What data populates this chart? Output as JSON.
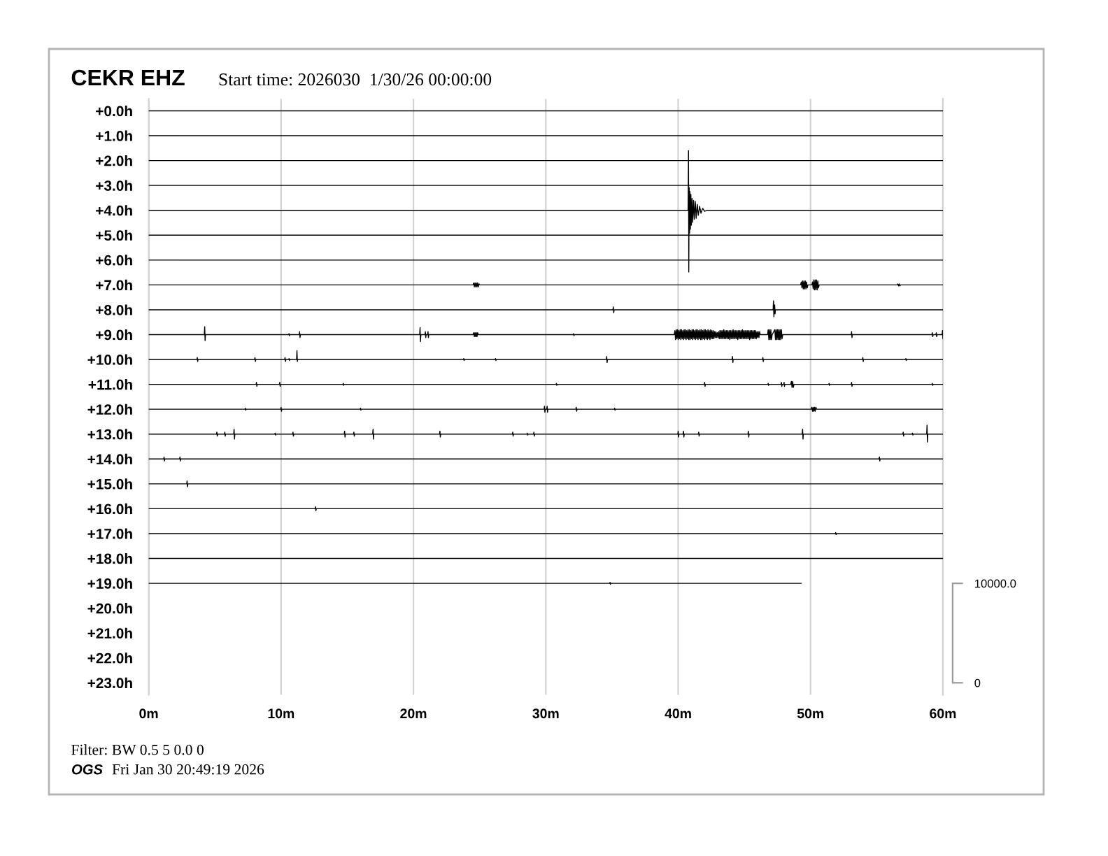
{
  "chart_data": {
    "type": "line",
    "title": "CEKR EHZ",
    "subtitle": "Start time: 2026030  1/30/26 00:00:00",
    "annotations": [
      "Filter: BW 0.5 5 0.0 0",
      "OGS",
      "Fri Jan 30 20:49:19 2026"
    ],
    "xlim": [
      0,
      60
    ],
    "xticks": [
      {
        "value": 0,
        "label": "0m"
      },
      {
        "value": 10,
        "label": "10m"
      },
      {
        "value": 20,
        "label": "20m"
      },
      {
        "value": 30,
        "label": "30m"
      },
      {
        "value": 40,
        "label": "40m"
      },
      {
        "value": 50,
        "label": "50m"
      },
      {
        "value": 60,
        "label": "60m"
      }
    ],
    "ylim": [
      23.48,
      -0.48
    ],
    "yticks": [
      {
        "value": 0,
        "label": "+0.0h"
      },
      {
        "value": 1,
        "label": "+1.0h"
      },
      {
        "value": 2,
        "label": "+2.0h"
      },
      {
        "value": 3,
        "label": "+3.0h"
      },
      {
        "value": 4,
        "label": "+4.0h"
      },
      {
        "value": 5,
        "label": "+5.0h"
      },
      {
        "value": 6,
        "label": "+6.0h"
      },
      {
        "value": 7,
        "label": "+7.0h"
      },
      {
        "value": 8,
        "label": "+8.0h"
      },
      {
        "value": 9,
        "label": "+9.0h"
      },
      {
        "value": 10,
        "label": "+10.0h"
      },
      {
        "value": 11,
        "label": "+11.0h"
      },
      {
        "value": 12,
        "label": "+12.0h"
      },
      {
        "value": 13,
        "label": "+13.0h"
      },
      {
        "value": 14,
        "label": "+14.0h"
      },
      {
        "value": 15,
        "label": "+15.0h"
      },
      {
        "value": 16,
        "label": "+16.0h"
      },
      {
        "value": 17,
        "label": "+17.0h"
      },
      {
        "value": 18,
        "label": "+18.0h"
      },
      {
        "value": 19,
        "label": "+19.0h"
      },
      {
        "value": 20,
        "label": "+20.0h"
      },
      {
        "value": 21,
        "label": "+21.0h"
      },
      {
        "value": 22,
        "label": "+22.0h"
      },
      {
        "value": 23,
        "label": "+23.0h"
      }
    ],
    "y2lim": [
      -1200,
      58700
    ],
    "y2ticks": [
      0,
      {
        "value": 10000,
        "label": "10000.0"
      }
    ],
    "grid": "x",
    "series": [
      {
        "color": "#000000",
        "axis": "y2",
        "x": [
          0,
          60
        ],
        "values": [
          57500,
          57500
        ]
      },
      {
        "color": "#000000",
        "axis": "y2",
        "x": [
          0,
          60
        ],
        "values": [
          55000,
          55000
        ]
      },
      {
        "color": "#000000",
        "axis": "y2",
        "x": [
          0,
          60
        ],
        "values": [
          52500,
          52500
        ]
      },
      {
        "color": "#000000",
        "axis": "y2",
        "x": [
          0,
          60
        ],
        "values": [
          50000,
          50000
        ]
      },
      {
        "color": "#000000",
        "axis": "y2",
        "x": [
          0,
          40.75,
          40.78,
          40.8,
          40.83,
          40.86,
          40.89,
          40.92,
          40.96,
          41.0,
          41.05,
          41.1,
          41.16,
          41.22,
          41.29,
          41.36,
          41.44,
          41.52,
          41.62,
          41.72,
          41.85,
          42.0,
          42.2,
          60
        ],
        "values": [
          47500,
          47500,
          53500,
          41300,
          49800,
          45200,
          49400,
          45600,
          49100,
          46000,
          48700,
          46300,
          48500,
          46600,
          48400,
          46700,
          48100,
          47000,
          47900,
          47200,
          47700,
          47400,
          47500,
          47500
        ]
      },
      {
        "color": "#000000",
        "axis": "y2",
        "x": [
          0,
          60
        ],
        "values": [
          45000,
          45000
        ]
      },
      {
        "color": "#000000",
        "axis": "y2",
        "x": [
          0,
          60
        ],
        "values": [
          42500,
          42500
        ]
      },
      {
        "color": "#000000",
        "axis": "y2",
        "x": [
          0,
          24.5,
          24.55,
          24.6,
          24.65,
          24.7,
          24.75,
          24.8,
          24.85,
          24.9,
          24.95,
          25.0,
          49.25,
          49.3,
          49.35,
          49.4,
          49.45,
          49.5,
          49.55,
          49.6,
          49.65,
          49.7,
          49.75,
          49.8,
          50.1,
          50.15,
          50.2,
          50.25,
          50.3,
          50.35,
          50.4,
          50.45,
          50.5,
          50.55,
          50.6,
          50.65,
          56.55,
          56.6,
          56.65,
          56.7,
          56.75,
          56.8,
          60
        ],
        "values": [
          40000,
          40000,
          40200,
          39800,
          40200,
          39800,
          40200,
          39800,
          40200,
          39800,
          40100,
          40000,
          40000,
          40300,
          39700,
          40400,
          39600,
          40400,
          39600,
          40400,
          39600,
          40300,
          39700,
          40000,
          40000,
          40300,
          39600,
          40500,
          39500,
          40500,
          39500,
          40500,
          39500,
          40400,
          39700,
          40000,
          40000,
          40100,
          39900,
          40100,
          39900,
          40000,
          40000
        ]
      },
      {
        "color": "#000000",
        "axis": "y2",
        "x": [
          0,
          35.07,
          35.1,
          35.13,
          35.16,
          47.17,
          47.2,
          47.23,
          47.26,
          47.29,
          47.32,
          47.35,
          60
        ],
        "values": [
          37500,
          37500,
          37800,
          37200,
          37500,
          37500,
          38400,
          36800,
          37500,
          38000,
          37100,
          37500,
          37500
        ]
      },
      {
        "color": "#000000",
        "axis": "y2",
        "x": [
          0,
          4.2,
          4.23,
          4.26,
          4.29,
          10.57,
          10.6,
          10.63,
          10.66,
          11.37,
          11.4,
          11.43,
          11.46,
          20.47,
          20.5,
          20.53,
          20.56,
          20.87,
          20.9,
          20.93,
          20.96,
          21.07,
          21.1,
          21.13,
          21.16,
          24.5,
          24.55,
          24.6,
          24.65,
          24.7,
          24.75,
          24.8,
          24.85,
          24.9,
          32.07,
          32.1,
          32.13,
          32.16,
          39.7,
          39.75,
          39.8,
          39.85,
          39.9,
          39.95,
          40.0,
          40.05,
          40.1,
          40.15,
          40.2,
          40.25,
          40.3,
          40.35,
          40.4,
          40.45,
          40.5,
          40.55,
          40.6,
          40.65,
          40.7,
          40.75,
          40.8,
          40.85,
          40.9,
          40.95,
          41.0,
          41.05,
          41.1,
          41.15,
          41.2,
          41.25,
          41.3,
          41.35,
          41.4,
          41.45,
          41.5,
          41.55,
          41.6,
          41.65,
          41.7,
          41.75,
          41.8,
          41.85,
          41.9,
          41.95,
          42.0,
          42.05,
          42.1,
          42.15,
          42.2,
          42.25,
          42.3,
          42.35,
          42.4,
          42.45,
          42.5,
          42.55,
          42.6,
          42.65,
          42.7,
          42.75,
          42.8,
          42.85,
          42.9,
          42.95,
          43.0,
          43.05,
          43.1,
          43.15,
          43.2,
          43.25,
          43.3,
          43.35,
          43.4,
          43.45,
          43.5,
          43.55,
          43.6,
          43.65,
          43.7,
          43.75,
          43.8,
          43.85,
          43.9,
          43.95,
          44.0,
          44.05,
          44.1,
          44.15,
          44.2,
          44.25,
          44.3,
          44.35,
          44.4,
          44.45,
          44.5,
          44.55,
          44.6,
          44.65,
          44.7,
          44.75,
          44.8,
          44.85,
          44.9,
          44.95,
          45.0,
          45.05,
          45.1,
          45.15,
          45.2,
          45.25,
          45.3,
          45.35,
          45.4,
          45.45,
          45.5,
          45.55,
          45.6,
          45.65,
          45.7,
          45.75,
          45.8,
          45.85,
          45.9,
          45.95,
          46.0,
          46.05,
          46.1,
          46.15,
          46.2,
          46.75,
          46.8,
          46.85,
          46.9,
          46.95,
          47.0,
          47.05,
          47.1,
          47.3,
          47.35,
          47.4,
          47.45,
          47.5,
          47.55,
          47.6,
          47.65,
          47.7,
          47.75,
          47.8,
          47.85,
          47.9,
          53.07,
          53.1,
          53.13,
          53.16,
          59.17,
          59.2,
          59.23,
          59.26,
          59.47,
          59.5,
          59.53,
          59.56,
          59.94,
          59.97,
          60
        ],
        "values": [
          35000,
          35000,
          35800,
          34400,
          35000,
          35000,
          35100,
          34900,
          35000,
          35000,
          35300,
          34700,
          35000,
          35000,
          35700,
          34300,
          35000,
          35000,
          35300,
          34700,
          35000,
          35000,
          35300,
          34700,
          35000,
          35000,
          35200,
          34800,
          35200,
          34800,
          35200,
          34800,
          35200,
          35000,
          35000,
          35100,
          34900,
          35000,
          35000,
          35400,
          34500,
          35500,
          34600,
          35500,
          34500,
          35400,
          34600,
          35500,
          34500,
          35500,
          34600,
          35400,
          34500,
          35500,
          34600,
          35500,
          34500,
          35400,
          34600,
          35500,
          34500,
          35500,
          34500,
          35400,
          34600,
          35500,
          34500,
          35500,
          34600,
          35400,
          34500,
          35500,
          34600,
          35500,
          34500,
          35400,
          34600,
          35500,
          34500,
          35500,
          34500,
          35400,
          34600,
          35500,
          34500,
          35500,
          34600,
          35400,
          34500,
          35500,
          34600,
          35400,
          34500,
          35500,
          34600,
          35400,
          34600,
          35400,
          34600,
          35300,
          34700,
          35300,
          34700,
          35200,
          34700,
          35300,
          34600,
          35400,
          34600,
          35400,
          34600,
          35400,
          34600,
          35500,
          34600,
          35400,
          34600,
          35400,
          34600,
          35400,
          34600,
          35400,
          34500,
          35400,
          34600,
          35400,
          34600,
          35500,
          34600,
          35400,
          34600,
          35400,
          34600,
          35400,
          34500,
          35400,
          34600,
          35400,
          34600,
          35400,
          34600,
          35500,
          34600,
          35400,
          34600,
          35400,
          34600,
          35400,
          34600,
          35400,
          34600,
          35400,
          34500,
          35400,
          34600,
          35400,
          34600,
          35400,
          34600,
          35400,
          34600,
          35400,
          34600,
          35300,
          34700,
          35300,
          34700,
          35300,
          35000,
          35000,
          35500,
          34500,
          35500,
          34500,
          35500,
          34500,
          35000,
          35500,
          34500,
          35500,
          34500,
          35500,
          34500,
          35500,
          34500,
          35500,
          34500,
          35500,
          34600,
          35000,
          35000,
          35300,
          34700,
          35000,
          35000,
          35200,
          34800,
          35000,
          35000,
          35200,
          34800,
          35000,
          35000,
          35400,
          34600
        ]
      },
      {
        "color": "#000000",
        "axis": "y2",
        "x": [
          0,
          3.64,
          3.67,
          3.7,
          3.73,
          8.0,
          8.03,
          8.06,
          8.09,
          10.27,
          10.3,
          10.33,
          10.36,
          10.57,
          10.6,
          10.63,
          10.66,
          11.17,
          11.2,
          11.23,
          11.26,
          23.77,
          23.8,
          23.83,
          23.86,
          26.17,
          26.2,
          26.23,
          26.26,
          34.57,
          34.6,
          34.63,
          34.66,
          44.07,
          44.1,
          44.13,
          44.16,
          46.37,
          46.4,
          46.43,
          46.46,
          53.92,
          53.95,
          53.98,
          54.01,
          57.17,
          57.2,
          57.23,
          57.26,
          60
        ],
        "values": [
          32500,
          32500,
          32700,
          32300,
          32500,
          32500,
          32700,
          32300,
          32500,
          32500,
          32700,
          32300,
          32500,
          32500,
          32600,
          32400,
          32500,
          32500,
          33400,
          32300,
          32500,
          32500,
          32600,
          32400,
          32500,
          32500,
          32600,
          32400,
          32500,
          32500,
          32800,
          32200,
          32500,
          32500,
          32800,
          32200,
          32500,
          32500,
          32700,
          32300,
          32500,
          32500,
          32700,
          32300,
          32500,
          32500,
          32600,
          32400,
          32500,
          32500
        ]
      },
      {
        "color": "#000000",
        "axis": "y2",
        "x": [
          0,
          8.11,
          8.14,
          8.17,
          8.2,
          9.87,
          9.9,
          9.93,
          9.96,
          14.67,
          14.7,
          14.73,
          14.76,
          30.77,
          30.8,
          30.83,
          30.86,
          41.97,
          42.0,
          42.03,
          42.06,
          46.77,
          46.8,
          46.83,
          46.86,
          47.77,
          47.8,
          47.83,
          47.86,
          47.97,
          48.0,
          48.03,
          48.06,
          48.5,
          48.55,
          48.6,
          48.65,
          48.7,
          48.75,
          51.37,
          51.4,
          51.43,
          51.46,
          53.07,
          53.1,
          53.13,
          53.16,
          59.17,
          59.2,
          59.23,
          59.26,
          60
        ],
        "values": [
          30000,
          30000,
          30200,
          29800,
          30000,
          30000,
          30200,
          29800,
          30000,
          30000,
          30100,
          29900,
          30000,
          30000,
          30100,
          29900,
          30000,
          30000,
          30200,
          29800,
          30000,
          30000,
          30100,
          29900,
          30000,
          30000,
          30200,
          29800,
          30000,
          30000,
          30200,
          29800,
          30000,
          30000,
          30300,
          29700,
          30300,
          29700,
          30000,
          30000,
          30100,
          29900,
          30000,
          30000,
          30200,
          29800,
          30000,
          30000,
          30100,
          29900,
          30000,
          30000
        ]
      },
      {
        "color": "#000000",
        "axis": "y2",
        "x": [
          0,
          7.27,
          7.3,
          7.33,
          7.36,
          9.97,
          10.0,
          10.03,
          10.06,
          15.97,
          16.0,
          16.03,
          16.06,
          29.87,
          29.9,
          29.93,
          29.96,
          30.07,
          30.1,
          30.13,
          30.16,
          32.27,
          32.3,
          32.33,
          32.36,
          35.17,
          35.2,
          35.23,
          35.26,
          50.05,
          50.1,
          50.15,
          50.2,
          50.25,
          50.3,
          50.35,
          50.4,
          50.45,
          60
        ],
        "values": [
          27500,
          27500,
          27600,
          27400,
          27500,
          27500,
          27700,
          27300,
          27500,
          27500,
          27600,
          27400,
          27500,
          27500,
          27800,
          27200,
          27500,
          27500,
          27800,
          27200,
          27500,
          27500,
          27700,
          27300,
          27500,
          27500,
          27600,
          27400,
          27500,
          27500,
          27700,
          27300,
          27700,
          27300,
          27700,
          27300,
          27700,
          27500,
          27500
        ]
      },
      {
        "color": "#000000",
        "axis": "y2",
        "x": [
          0,
          5.12,
          5.15,
          5.18,
          5.21,
          5.72,
          5.75,
          5.78,
          5.81,
          6.42,
          6.45,
          6.48,
          6.51,
          9.52,
          9.55,
          9.58,
          9.61,
          10.87,
          10.9,
          10.93,
          10.96,
          14.77,
          14.8,
          14.83,
          14.86,
          15.47,
          15.5,
          15.53,
          15.56,
          16.92,
          16.95,
          16.98,
          17.01,
          21.97,
          22.0,
          22.03,
          22.06,
          27.47,
          27.5,
          27.53,
          27.56,
          28.57,
          28.6,
          28.63,
          28.66,
          29.07,
          29.1,
          29.13,
          29.16,
          39.97,
          40.0,
          40.03,
          40.06,
          40.37,
          40.4,
          40.43,
          40.46,
          41.52,
          41.55,
          41.58,
          41.61,
          45.27,
          45.3,
          45.33,
          45.36,
          49.37,
          49.4,
          49.43,
          49.46,
          56.97,
          57.0,
          57.03,
          57.06,
          57.67,
          57.7,
          57.73,
          57.76,
          58.77,
          58.8,
          58.83,
          58.86,
          60
        ],
        "values": [
          25000,
          25000,
          25200,
          24800,
          25000,
          25000,
          25200,
          24800,
          25000,
          25000,
          25500,
          24500,
          25000,
          25000,
          25100,
          24900,
          25000,
          25000,
          25200,
          24800,
          25000,
          25000,
          25300,
          24700,
          25000,
          25000,
          25200,
          24800,
          25000,
          25000,
          25500,
          24500,
          25000,
          25000,
          25300,
          24700,
          25000,
          25000,
          25200,
          24800,
          25000,
          25000,
          25100,
          24900,
          25000,
          25000,
          25200,
          24800,
          25000,
          25000,
          25300,
          24700,
          25000,
          25000,
          25300,
          24700,
          25000,
          25000,
          25200,
          24800,
          25000,
          25000,
          25300,
          24700,
          25000,
          25000,
          25500,
          24500,
          25000,
          25000,
          25200,
          24800,
          25000,
          25000,
          25100,
          24900,
          25000,
          25000,
          25900,
          24200,
          25000,
          25000
        ]
      },
      {
        "color": "#000000",
        "axis": "y2",
        "x": [
          0,
          1.13,
          1.16,
          1.19,
          1.22,
          2.33,
          2.36,
          2.39,
          2.42,
          55.17,
          55.2,
          55.23,
          55.26,
          60
        ],
        "values": [
          22500,
          22500,
          22700,
          22300,
          22500,
          22500,
          22700,
          22300,
          22500,
          22500,
          22700,
          22300,
          22500,
          22500
        ]
      },
      {
        "color": "#000000",
        "axis": "y2",
        "x": [
          0,
          2.87,
          2.9,
          2.93,
          2.96,
          60
        ],
        "values": [
          20000,
          20000,
          20300,
          19700,
          20000,
          20000
        ]
      },
      {
        "color": "#000000",
        "axis": "y2",
        "x": [
          0,
          12.57,
          12.6,
          12.63,
          12.66,
          60
        ],
        "values": [
          17500,
          17500,
          17700,
          17300,
          17500,
          17500
        ]
      },
      {
        "color": "#000000",
        "axis": "y2",
        "x": [
          0,
          51.87,
          51.9,
          51.93,
          51.96,
          60
        ],
        "values": [
          15000,
          15000,
          15100,
          14900,
          15000,
          15000
        ]
      },
      {
        "color": "#000000",
        "axis": "y2",
        "x": [
          0,
          60
        ],
        "values": [
          12500,
          12500
        ]
      },
      {
        "color": "#000000",
        "axis": "y2",
        "x": [
          0,
          34.82,
          34.85,
          34.88,
          34.91,
          49.3
        ],
        "values": [
          10000,
          10000,
          10100,
          9900,
          10000,
          10000
        ]
      }
    ]
  }
}
